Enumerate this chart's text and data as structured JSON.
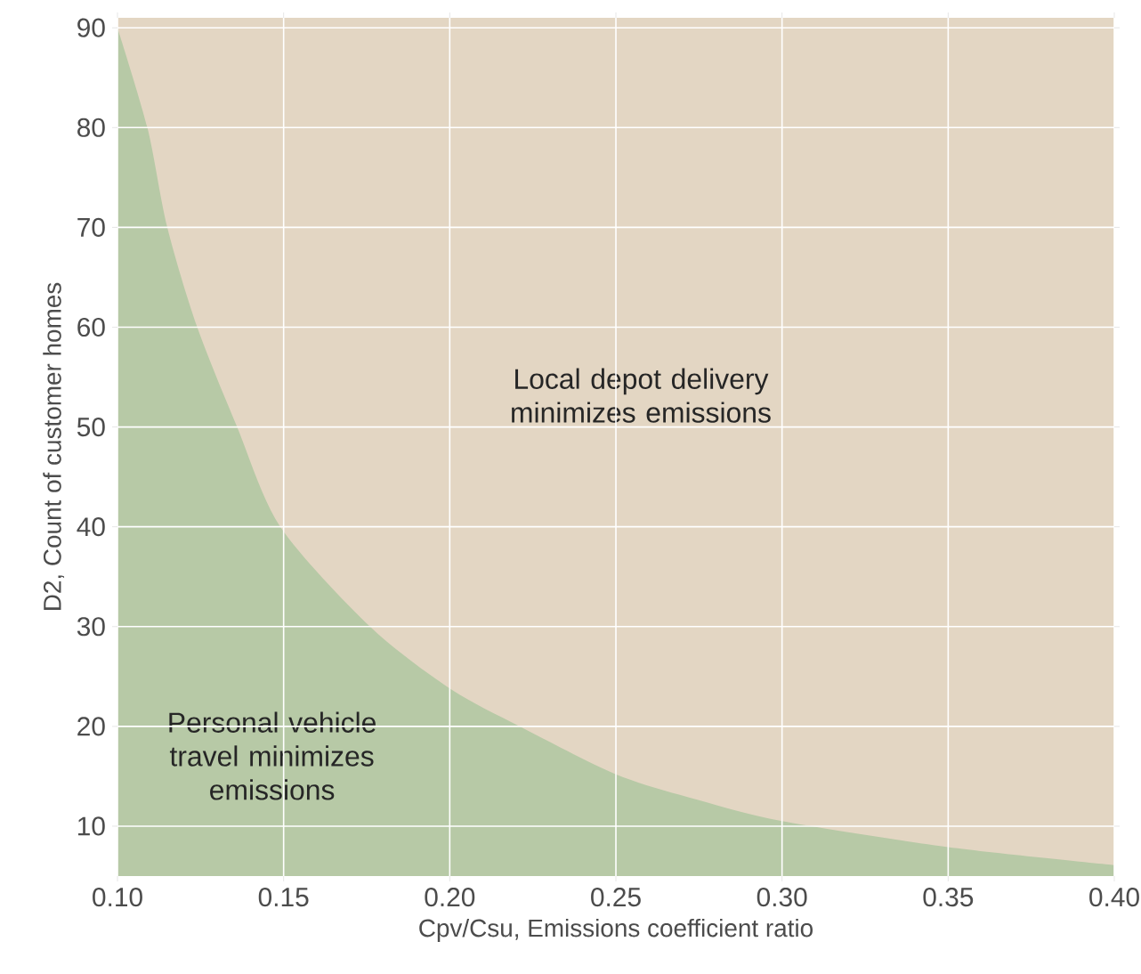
{
  "chart_data": {
    "type": "area",
    "xlabel": "Cpv/Csu, Emissions coefficient ratio",
    "ylabel": "D2, Count of customer homes",
    "x": [
      0.1,
      0.109,
      0.115,
      0.124,
      0.136,
      0.149,
      0.176,
      0.2,
      0.221,
      0.25,
      0.275,
      0.3,
      0.35,
      0.4
    ],
    "series": [
      {
        "color": "#b7c9a6",
        "values": [
          90,
          80,
          70,
          60,
          50,
          40,
          30,
          23.8,
          20,
          15.2,
          12.6,
          10.5,
          7.9,
          6.1
        ]
      }
    ],
    "xlim": [
      0.1,
      0.4
    ],
    "ylim": [
      5,
      91
    ],
    "xticks": [
      {
        "value": 0.1,
        "label": "0.10"
      },
      0.15,
      {
        "value": 0.2,
        "label": "0.20"
      },
      0.25,
      {
        "value": 0.3,
        "label": "0.30"
      },
      0.35,
      {
        "value": 0.4,
        "label": "0.40"
      }
    ],
    "yticks": [
      10,
      20,
      30,
      40,
      50,
      60,
      70,
      80,
      90
    ],
    "grid": true,
    "bands": [
      {
        "axis": "x",
        "from": 0.1,
        "to": 0.4,
        "color": "#e3d6c3"
      }
    ],
    "annotations": [
      "Local depot delivery minimizes emissions",
      "Personal vehicle travel minimizes emissions"
    ]
  }
}
